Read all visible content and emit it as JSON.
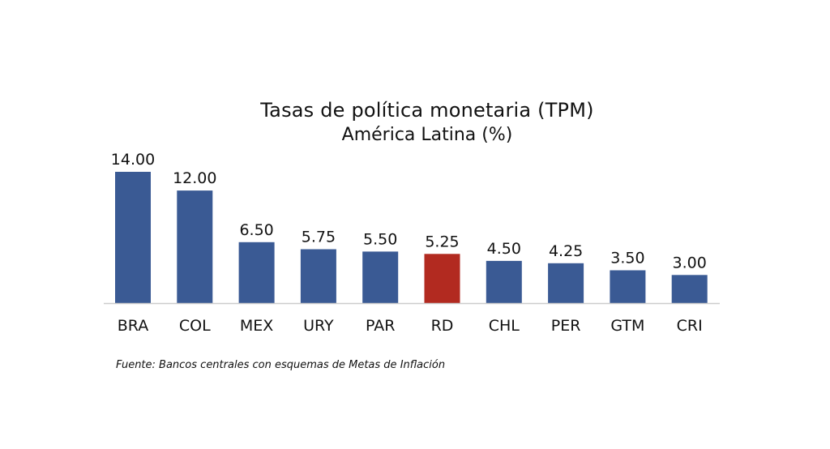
{
  "chart_data": {
    "type": "bar",
    "title": "Tasas de política monetaria (TPM)",
    "subtitle": "América Latina (%)",
    "categories": [
      "BRA",
      "COL",
      "MEX",
      "URY",
      "PAR",
      "RD",
      "CHL",
      "PER",
      "GTM",
      "CRI"
    ],
    "values": [
      14.0,
      12.0,
      6.5,
      5.75,
      5.5,
      5.25,
      4.5,
      4.25,
      3.5,
      3.0
    ],
    "value_labels": [
      "14.00",
      "12.00",
      "6.50",
      "5.75",
      "5.50",
      "5.25",
      "4.50",
      "4.25",
      "3.50",
      "3.00"
    ],
    "ylim": [
      0,
      14
    ],
    "grid": false,
    "legend": "none",
    "colors": {
      "default": "#3a5a94",
      "highlight": "#b22a20",
      "highlight_category": "RD",
      "axis": "#cccccc"
    }
  },
  "source": "Fuente: Bancos centrales con esquemas de Metas de Inflación"
}
